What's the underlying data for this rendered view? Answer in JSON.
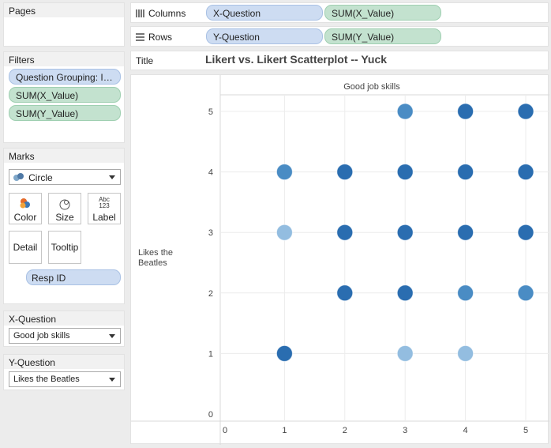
{
  "pages": {
    "title": "Pages"
  },
  "filters": {
    "title": "Filters",
    "items": [
      "Question Grouping: Indi..",
      "SUM(X_Value)",
      "SUM(Y_Value)"
    ]
  },
  "marks": {
    "title": "Marks",
    "type": "Circle",
    "buttons": {
      "color": "Color",
      "size": "Size",
      "label": "Label",
      "detail": "Detail",
      "tooltip": "Tooltip"
    },
    "label_icon_text": "Abc\n123",
    "field": "Resp ID"
  },
  "x_question": {
    "title": "X-Question",
    "value": "Good job skills"
  },
  "y_question": {
    "title": "Y-Question",
    "value": "Likes the Beatles"
  },
  "shelves": {
    "columns": {
      "label": "Columns",
      "pills": [
        "X-Question",
        "SUM(X_Value)"
      ]
    },
    "rows": {
      "label": "Rows",
      "pills": [
        "Y-Question",
        "SUM(Y_Value)"
      ]
    },
    "title": {
      "label": "Title",
      "text": "Likert vs. Likert Scatterplot -- Yuck"
    }
  },
  "colors": {
    "dark": "#2a6db0",
    "mid": "#4a8cc4",
    "light": "#93bde0"
  },
  "chart_data": {
    "type": "scatter",
    "col_header": "Good job skills",
    "row_header": "Likes the Beatles",
    "xlim": [
      0,
      5
    ],
    "ylim": [
      0,
      5
    ],
    "x_ticks": [
      "0",
      "1",
      "2",
      "3",
      "4",
      "5"
    ],
    "y_ticks": [
      "0",
      "1",
      "2",
      "3",
      "4",
      "5"
    ],
    "grid": true,
    "points": [
      {
        "x": 3,
        "y": 5,
        "shade": "mid"
      },
      {
        "x": 4,
        "y": 5,
        "shade": "dark"
      },
      {
        "x": 5,
        "y": 5,
        "shade": "dark"
      },
      {
        "x": 1,
        "y": 4,
        "shade": "mid"
      },
      {
        "x": 2,
        "y": 4,
        "shade": "dark"
      },
      {
        "x": 3,
        "y": 4,
        "shade": "dark"
      },
      {
        "x": 4,
        "y": 4,
        "shade": "dark"
      },
      {
        "x": 5,
        "y": 4,
        "shade": "dark"
      },
      {
        "x": 1,
        "y": 3,
        "shade": "light"
      },
      {
        "x": 2,
        "y": 3,
        "shade": "dark"
      },
      {
        "x": 3,
        "y": 3,
        "shade": "dark"
      },
      {
        "x": 4,
        "y": 3,
        "shade": "dark"
      },
      {
        "x": 5,
        "y": 3,
        "shade": "dark"
      },
      {
        "x": 2,
        "y": 2,
        "shade": "dark"
      },
      {
        "x": 3,
        "y": 2,
        "shade": "dark"
      },
      {
        "x": 4,
        "y": 2,
        "shade": "mid"
      },
      {
        "x": 5,
        "y": 2,
        "shade": "mid"
      },
      {
        "x": 1,
        "y": 1,
        "shade": "dark"
      },
      {
        "x": 3,
        "y": 1,
        "shade": "light"
      },
      {
        "x": 4,
        "y": 1,
        "shade": "light"
      }
    ]
  }
}
